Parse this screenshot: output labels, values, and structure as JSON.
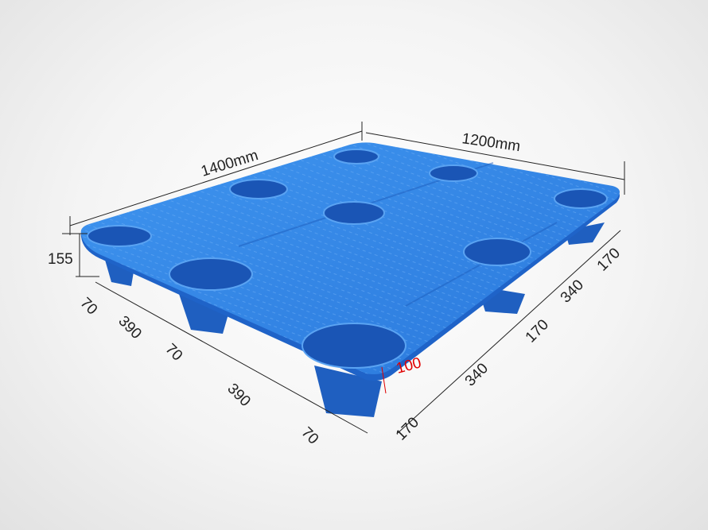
{
  "product": {
    "name_icon": "plastic-pallet-image",
    "color": "#2f7fe0"
  },
  "dimensions": {
    "length": "1400mm",
    "width": "1200mm",
    "height": "155",
    "leg_height": "100",
    "left_side": [
      "70",
      "390",
      "70",
      "390",
      "70"
    ],
    "right_side": [
      "170",
      "340",
      "170",
      "340",
      "170"
    ]
  },
  "colors": {
    "dimension_line": "#222222",
    "highlight": "#e00000"
  }
}
